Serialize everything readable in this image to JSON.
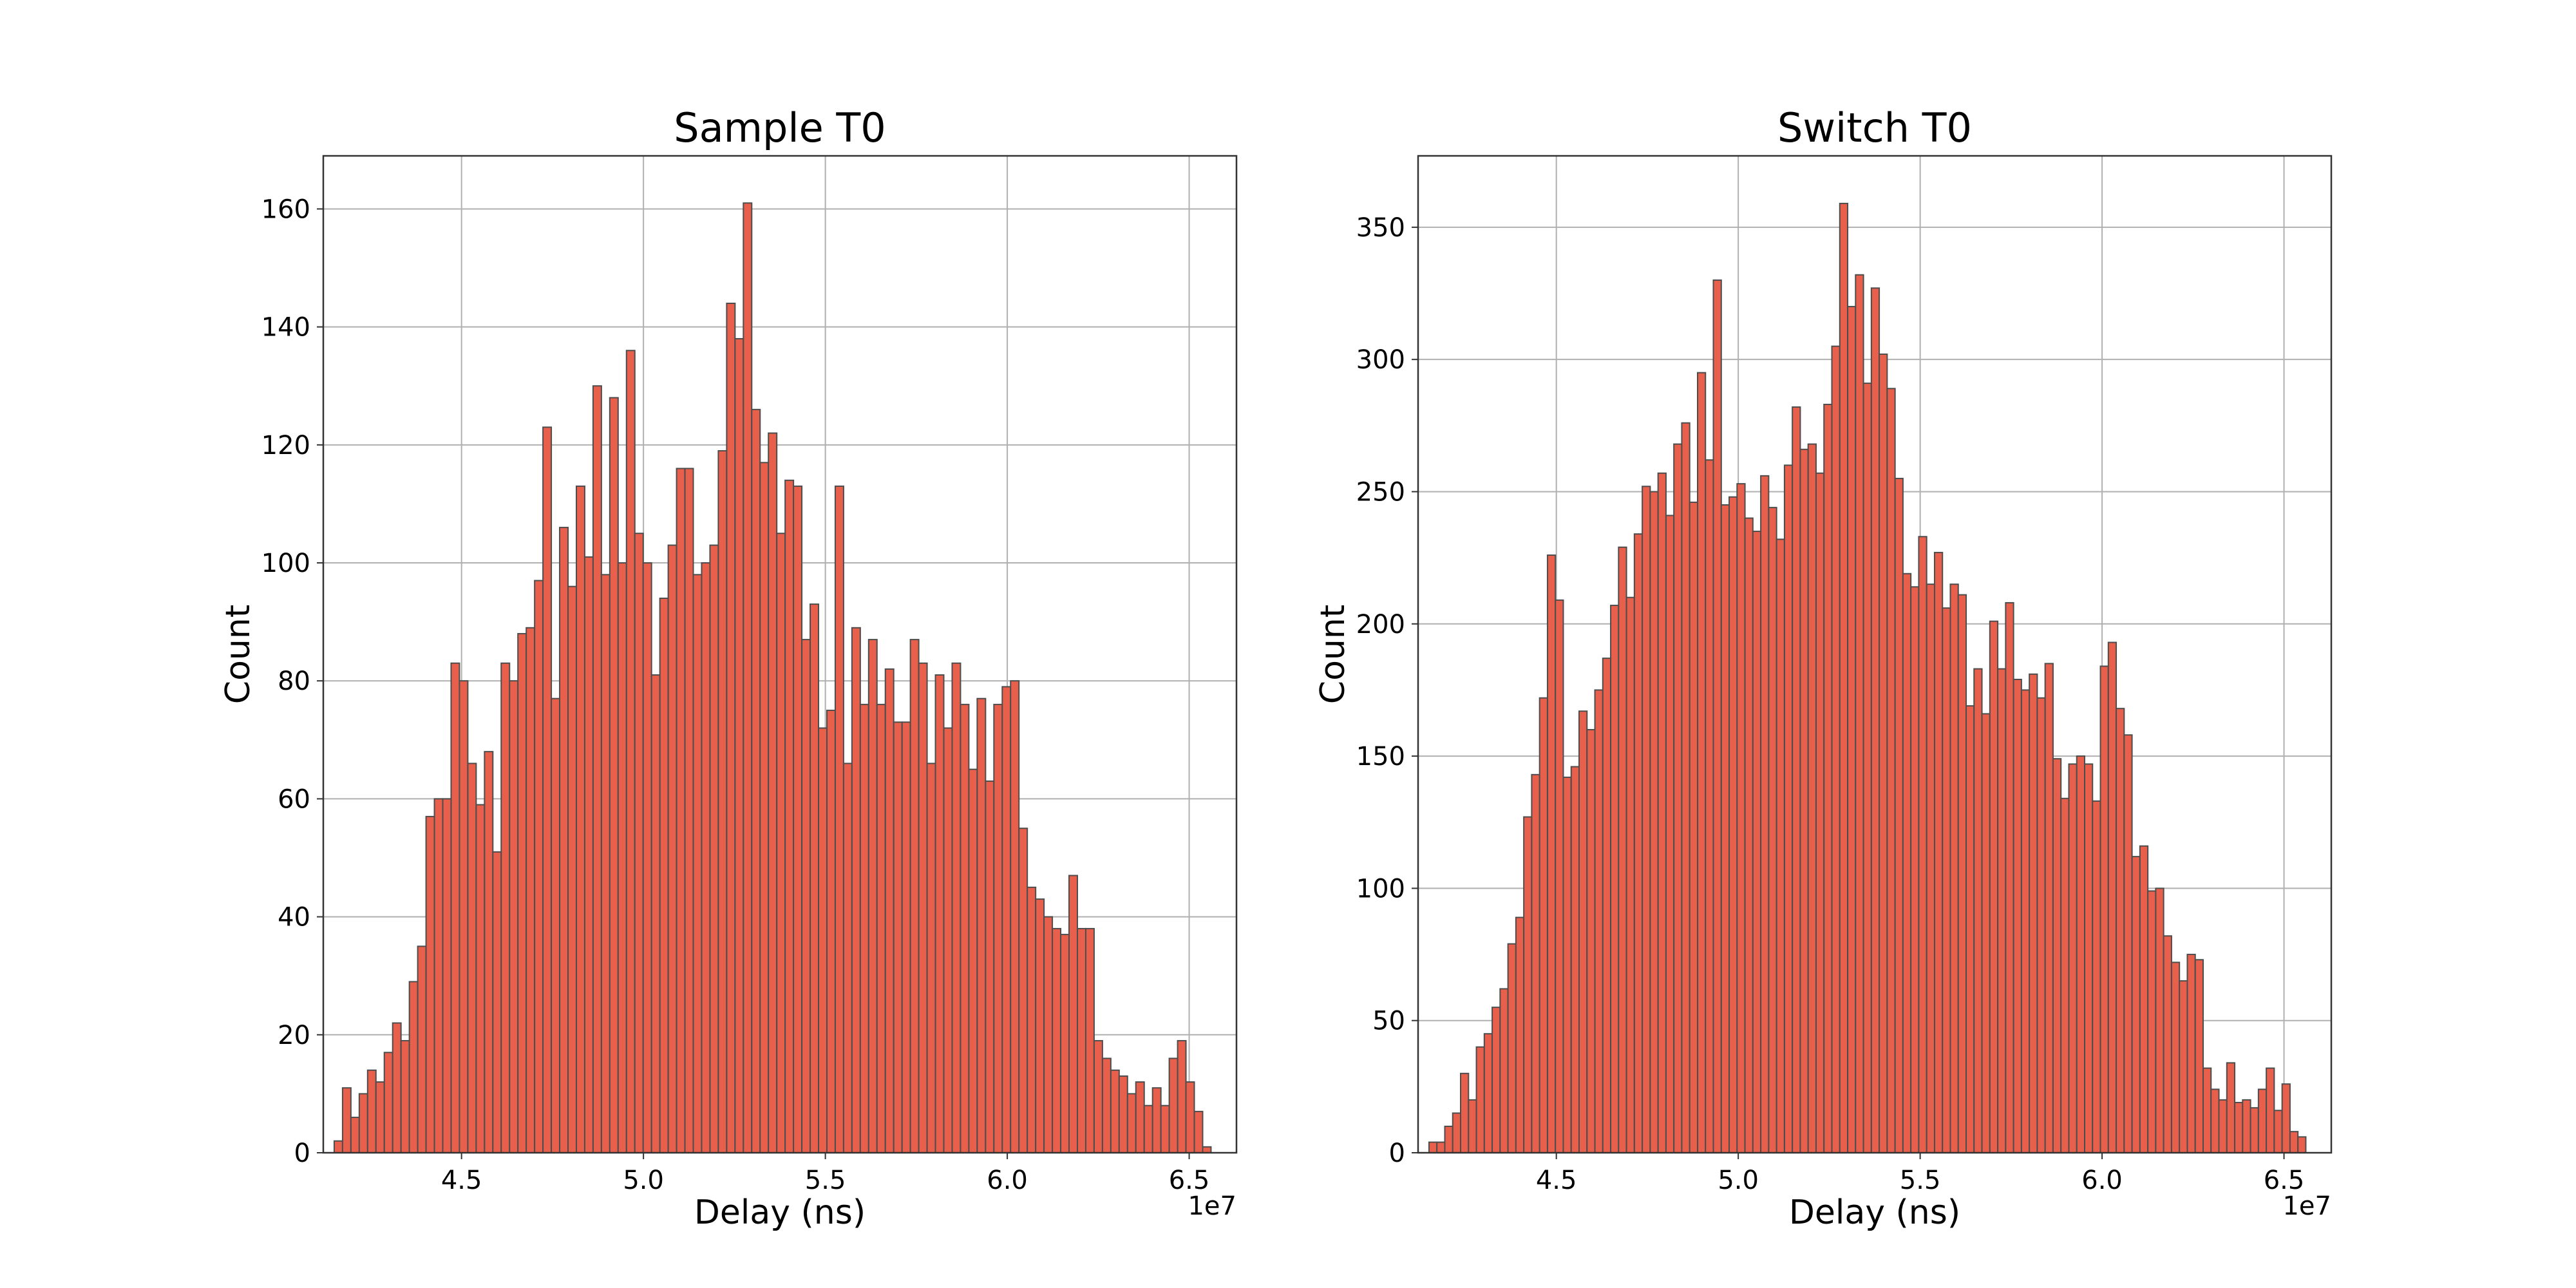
{
  "chart_data": [
    {
      "type": "histogram",
      "title": "Sample T0",
      "xlabel": "Delay (ns)",
      "ylabel": "Count",
      "x_offset_label": "1e7",
      "xlim": [
        41.2,
        66.3
      ],
      "ylim": [
        0,
        169
      ],
      "xticks": [
        {
          "value": 45,
          "label": "4.5"
        },
        {
          "value": 50,
          "label": "5.0"
        },
        {
          "value": 55,
          "label": "5.5"
        },
        {
          "value": 60,
          "label": "6.0"
        },
        {
          "value": 65,
          "label": "6.5"
        }
      ],
      "yticks": [
        {
          "value": 0,
          "label": "0"
        },
        {
          "value": 20,
          "label": "20"
        },
        {
          "value": 40,
          "label": "40"
        },
        {
          "value": 60,
          "label": "60"
        },
        {
          "value": 80,
          "label": "80"
        },
        {
          "value": 100,
          "label": "100"
        },
        {
          "value": 120,
          "label": "120"
        },
        {
          "value": 140,
          "label": "140"
        },
        {
          "value": 160,
          "label": "160"
        }
      ],
      "grid": true,
      "bar_color": "#e8604c",
      "bins_start": 41.5,
      "bins_end": 65.6,
      "counts": [
        2,
        11,
        6,
        10,
        14,
        12,
        17,
        22,
        19,
        29,
        35,
        57,
        60,
        60,
        83,
        80,
        66,
        59,
        68,
        51,
        83,
        80,
        88,
        89,
        97,
        123,
        77,
        106,
        96,
        113,
        101,
        130,
        98,
        128,
        100,
        136,
        105,
        100,
        81,
        94,
        103,
        116,
        116,
        98,
        100,
        103,
        119,
        144,
        138,
        161,
        126,
        117,
        122,
        105,
        114,
        113,
        87,
        93,
        72,
        75,
        113,
        66,
        89,
        76,
        87,
        76,
        82,
        73,
        73,
        87,
        83,
        66,
        81,
        72,
        83,
        76,
        65,
        77,
        63,
        76,
        79,
        80,
        55,
        45,
        43,
        40,
        38,
        37,
        47,
        38,
        38,
        19,
        16,
        14,
        13,
        10,
        12,
        8,
        11,
        8,
        16,
        19,
        12,
        7,
        1
      ]
    },
    {
      "type": "histogram",
      "title": "Switch T0",
      "xlabel": "Delay (ns)",
      "ylabel": "Count",
      "x_offset_label": "1e7",
      "xlim": [
        41.2,
        66.3
      ],
      "ylim": [
        0,
        377
      ],
      "xticks": [
        {
          "value": 45,
          "label": "4.5"
        },
        {
          "value": 50,
          "label": "5.0"
        },
        {
          "value": 55,
          "label": "5.5"
        },
        {
          "value": 60,
          "label": "6.0"
        },
        {
          "value": 65,
          "label": "6.5"
        }
      ],
      "yticks": [
        {
          "value": 0,
          "label": "0"
        },
        {
          "value": 50,
          "label": "50"
        },
        {
          "value": 100,
          "label": "100"
        },
        {
          "value": 150,
          "label": "150"
        },
        {
          "value": 200,
          "label": "200"
        },
        {
          "value": 250,
          "label": "250"
        },
        {
          "value": 300,
          "label": "300"
        },
        {
          "value": 350,
          "label": "350"
        }
      ],
      "grid": true,
      "bar_color": "#e8604c",
      "bins_start": 41.5,
      "bins_end": 65.6,
      "counts": [
        4,
        4,
        10,
        15,
        30,
        20,
        40,
        45,
        55,
        62,
        79,
        89,
        127,
        143,
        172,
        226,
        209,
        142,
        146,
        167,
        160,
        175,
        187,
        207,
        229,
        210,
        234,
        252,
        250,
        257,
        241,
        268,
        276,
        246,
        295,
        262,
        330,
        245,
        248,
        253,
        240,
        235,
        256,
        244,
        232,
        260,
        282,
        266,
        268,
        257,
        283,
        305,
        359,
        320,
        332,
        291,
        327,
        302,
        289,
        255,
        219,
        214,
        233,
        215,
        227,
        206,
        215,
        211,
        169,
        183,
        166,
        201,
        183,
        208,
        179,
        175,
        181,
        172,
        185,
        149,
        134,
        147,
        150,
        147,
        133,
        184,
        193,
        168,
        158,
        112,
        116,
        99,
        100,
        82,
        72,
        65,
        75,
        73,
        32,
        24,
        20,
        34,
        19,
        20,
        17,
        24,
        32,
        16,
        26,
        8,
        6
      ]
    }
  ]
}
